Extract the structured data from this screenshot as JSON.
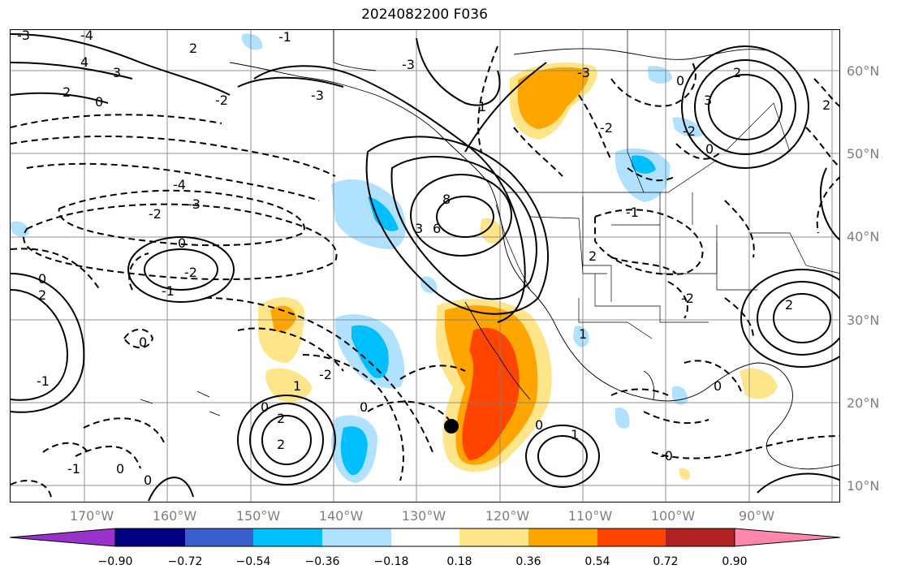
{
  "title": "2024082200 F036",
  "map": {
    "lat_labels": [
      "60°N",
      "50°N",
      "40°N",
      "30°N",
      "20°N",
      "10°N"
    ],
    "lon_labels": [
      "170°W",
      "160°W",
      "150°W",
      "140°W",
      "130°W",
      "120°W",
      "110°W",
      "100°W",
      "90°W"
    ],
    "contour_labels": [
      "-3",
      "-4",
      "4",
      "3",
      "2",
      "0",
      "-2",
      "-1",
      "-3",
      "-4",
      "-3",
      "-2",
      "0",
      "-1",
      "-2",
      "0",
      "2",
      "-3",
      "8",
      "6",
      "3",
      "-1",
      "-2",
      "-3",
      "0",
      "-2",
      "2",
      "1",
      "2",
      "3",
      "2",
      "0",
      "-2",
      "1",
      "0",
      "1",
      "2",
      "-1",
      "0",
      "0",
      "1",
      "2",
      "2",
      "0",
      "0",
      "-1",
      "0",
      "0",
      "2",
      "-0",
      "-2"
    ],
    "marker": "black-dot"
  },
  "colorbar": {
    "ticks": [
      "−0.90",
      "−0.72",
      "−0.54",
      "−0.36",
      "−0.18",
      "0.18",
      "0.36",
      "0.54",
      "0.72",
      "0.90"
    ],
    "colors": [
      "#9932cc",
      "#000080",
      "#3a5fcd",
      "#00bfff",
      "#b0e2ff",
      "#ffffff",
      "#ffe58a",
      "#ffa500",
      "#ff4500",
      "#b22222",
      "#ff88aa"
    ]
  }
}
